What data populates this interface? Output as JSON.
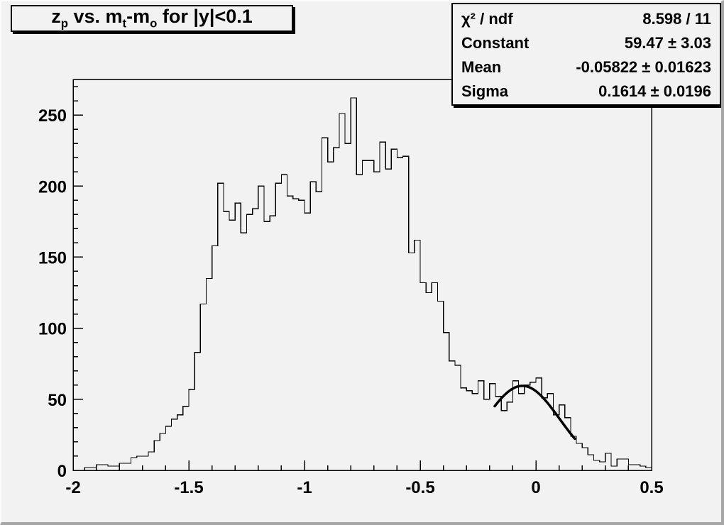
{
  "canvas": {
    "background": "#f2f2f2",
    "line_color": "#000000",
    "fit_color": "#000000"
  },
  "title": {
    "text": "z_{p} vs. m_{t}-m_{o} for |y|<0.1"
  },
  "stats": {
    "rows": [
      {
        "label": "χ² / ndf",
        "value": "8.598 / 11"
      },
      {
        "label": "Constant",
        "value": "59.47 ± 3.03"
      },
      {
        "label": "Mean",
        "value": "-0.05822 ± 0.01623"
      },
      {
        "label": "Sigma",
        "value": "0.1614 ± 0.0196"
      }
    ]
  },
  "chart_data": {
    "type": "bar",
    "subtype": "histogram-step",
    "title": "z_{p} vs. m_{t}-m_{o} for |y|<0.1",
    "xlabel": "",
    "ylabel": "",
    "xlim": [
      -2,
      0.5
    ],
    "ylim": [
      0,
      275
    ],
    "grid": false,
    "legend_position": "none",
    "x_major_ticks": [
      -2,
      -1.5,
      -1,
      -0.5,
      0,
      0.5
    ],
    "x_major_labels": [
      "-2",
      "-1.5",
      "-1",
      "-0.5",
      "0",
      "0.5"
    ],
    "x_minor_step": 0.1,
    "y_major_ticks": [
      0,
      50,
      100,
      150,
      200,
      250
    ],
    "y_major_labels": [
      "0",
      "50",
      "100",
      "150",
      "200",
      "250"
    ],
    "y_minor_step": 10,
    "histogram": {
      "bin_start": -2.0,
      "bin_width": 0.025,
      "values": [
        0,
        0,
        2,
        2,
        4,
        4,
        3,
        3,
        5,
        5,
        9,
        10,
        10,
        13,
        21,
        26,
        31,
        36,
        39,
        45,
        57,
        83,
        117,
        135,
        158,
        202,
        182,
        176,
        188,
        167,
        180,
        184,
        200,
        175,
        179,
        202,
        208,
        193,
        191,
        190,
        181,
        203,
        196,
        234,
        217,
        227,
        251,
        230,
        262,
        208,
        218,
        218,
        210,
        231,
        212,
        226,
        220,
        221,
        153,
        162,
        132,
        125,
        132,
        119,
        97,
        77,
        74,
        58,
        56,
        54,
        63,
        50,
        61,
        52,
        42,
        48,
        63,
        54,
        60,
        62,
        65,
        51,
        54,
        39,
        46,
        37,
        24,
        19,
        16,
        11,
        7,
        6,
        12,
        3,
        8,
        8,
        4,
        4,
        3,
        2
      ]
    },
    "fit": {
      "type": "gaussian",
      "constant": 59.47,
      "mean": -0.05822,
      "sigma": 0.1614,
      "draw_range": [
        -0.178,
        0.168
      ]
    }
  }
}
